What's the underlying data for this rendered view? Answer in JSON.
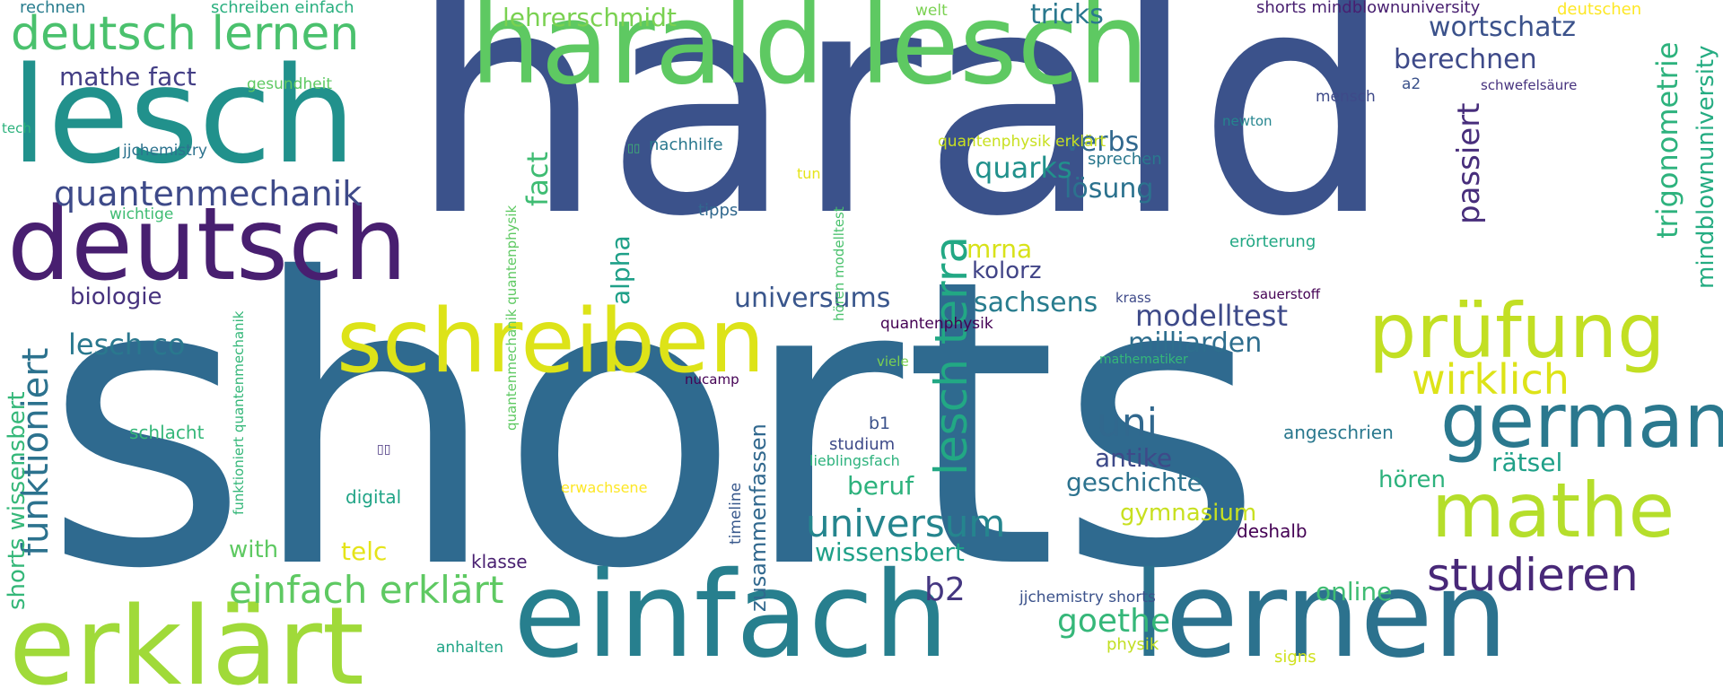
{
  "words": [
    {
      "text": "shorts",
      "color": "#2f6a8f"
    },
    {
      "text": "harald",
      "color": "#3b528b"
    },
    {
      "text": "einfach",
      "color": "#277f8e"
    },
    {
      "text": "lernen",
      "color": "#2c728e"
    },
    {
      "text": "harald lesch",
      "color": "#5ec962"
    },
    {
      "text": "lesch",
      "color": "#21918c"
    },
    {
      "text": "deutsch",
      "color": "#481f70"
    },
    {
      "text": "erklärt",
      "color": "#a0da39"
    },
    {
      "text": "schreiben",
      "color": "#dde318"
    },
    {
      "text": "prüfung",
      "color": "#c2df23"
    },
    {
      "text": "mathe",
      "color": "#b5de2b"
    },
    {
      "text": "german",
      "color": "#2a788e"
    },
    {
      "text": "deutsch lernen",
      "color": "#4ac16d"
    },
    {
      "text": "studieren",
      "color": "#482878"
    },
    {
      "text": "funktioniert",
      "color": "#2c728e"
    },
    {
      "text": "lesch terra",
      "color": "#22a884"
    },
    {
      "text": "einfach erklärt",
      "color": "#5ec962"
    },
    {
      "text": "quantenmechanik",
      "color": "#3e4a89"
    },
    {
      "text": "universum",
      "color": "#25858e"
    },
    {
      "text": "wirklich",
      "color": "#dde318"
    },
    {
      "text": "uni",
      "color": "#31688e"
    },
    {
      "text": "goethe",
      "color": "#35b779"
    },
    {
      "text": "mathe fact",
      "color": "#433e85"
    },
    {
      "text": "lehrerschmidt",
      "color": "#7ad151"
    },
    {
      "text": "tricks",
      "color": "#2a788e"
    },
    {
      "text": "wortschatz",
      "color": "#3b528b"
    },
    {
      "text": "berechnen",
      "color": "#3e4a89"
    },
    {
      "text": "passiert",
      "color": "#472d7b"
    },
    {
      "text": "trigonometrie",
      "color": "#2db27d"
    },
    {
      "text": "mindblownuniversity",
      "color": "#25ac82"
    },
    {
      "text": "verbs",
      "color": "#31688e"
    },
    {
      "text": "lösung",
      "color": "#2c728e"
    },
    {
      "text": "quarks",
      "color": "#21918c"
    },
    {
      "text": "fact",
      "color": "#3fbc73"
    },
    {
      "text": "alpha",
      "color": "#1fa088"
    },
    {
      "text": "mrna",
      "color": "#d8e219"
    },
    {
      "text": "kolorz",
      "color": "#414487"
    },
    {
      "text": "universums",
      "color": "#39568c"
    },
    {
      "text": "sachsens",
      "color": "#287c8e"
    },
    {
      "text": "modelltest",
      "color": "#3e4a89"
    },
    {
      "text": "milliarden",
      "color": "#2e6e8e"
    },
    {
      "text": "biologie",
      "color": "#46327e"
    },
    {
      "text": "lesch co",
      "color": "#2a788e"
    },
    {
      "text": "shorts wissensbert",
      "color": "#35b779"
    },
    {
      "text": "antike",
      "color": "#3e4a89"
    },
    {
      "text": "geschichte",
      "color": "#2c728e"
    },
    {
      "text": "rätsel",
      "color": "#1fa088"
    },
    {
      "text": "hören",
      "color": "#2db27d"
    },
    {
      "text": "beruf",
      "color": "#2db27d"
    },
    {
      "text": "gymnasium",
      "color": "#c8e020"
    },
    {
      "text": "wissensbert",
      "color": "#1fa088"
    },
    {
      "text": "zusammenfassen",
      "color": "#31688e"
    },
    {
      "text": "with",
      "color": "#5ec962"
    },
    {
      "text": "telc",
      "color": "#e5e419"
    },
    {
      "text": "b2",
      "color": "#453781"
    },
    {
      "text": "online",
      "color": "#3fbc73"
    },
    {
      "text": "jjchemistry shorts",
      "color": "#3b528b"
    },
    {
      "text": "schlacht",
      "color": "#35b779"
    },
    {
      "text": "digital",
      "color": "#20a486"
    },
    {
      "text": "klasse",
      "color": "#481f70"
    },
    {
      "text": "deshalb",
      "color": "#440154"
    },
    {
      "text": "timeline",
      "color": "#38588c"
    },
    {
      "text": "studium",
      "color": "#3e4a89"
    },
    {
      "text": "b1",
      "color": "#3b528b"
    },
    {
      "text": "lieblingsfach",
      "color": "#2db27d"
    },
    {
      "text": "angeschrien",
      "color": "#2a788e"
    },
    {
      "text": "erwachsene",
      "color": "#fde725"
    },
    {
      "text": "anhalten",
      "color": "#20a486"
    },
    {
      "text": "physik",
      "color": "#c2df23"
    },
    {
      "text": "signs",
      "color": "#d0e11c"
    },
    {
      "text": "rechnen",
      "color": "#287c8e"
    },
    {
      "text": "schreiben einfach",
      "color": "#29af7f"
    },
    {
      "text": "welt",
      "color": "#7ad151"
    },
    {
      "text": "shorts mindblownuniversity",
      "color": "#481f70"
    },
    {
      "text": "deutschen",
      "color": "#fde725"
    },
    {
      "text": "gesundheit",
      "color": "#5ec962"
    },
    {
      "text": "tech",
      "color": "#2db27d"
    },
    {
      "text": "jjchemistry",
      "color": "#2c728e"
    },
    {
      "text": "wichtige",
      "color": "#3fbc73"
    },
    {
      "text": "nachhilfe",
      "color": "#2a788e"
    },
    {
      "text": "tun",
      "color": "#e5e419"
    },
    {
      "text": "tipps",
      "color": "#31688e"
    },
    {
      "text": "hören modelltest",
      "color": "#4ac16d"
    },
    {
      "text": "quantenphysik erklärt",
      "color": "#c8e020"
    },
    {
      "text": "sprechen",
      "color": "#2a788e"
    },
    {
      "text": "mensch",
      "color": "#3e4a89"
    },
    {
      "text": "a2",
      "color": "#3b528b"
    },
    {
      "text": "schwefelsäure",
      "color": "#46327e"
    },
    {
      "text": "newton",
      "color": "#25858e"
    },
    {
      "text": "erörterung",
      "color": "#22a884"
    },
    {
      "text": "krass",
      "color": "#3e4a89"
    },
    {
      "text": "sauerstoff",
      "color": "#440154"
    },
    {
      "text": "quantenphysik",
      "color": "#440154"
    },
    {
      "text": "mathematiker",
      "color": "#35b779"
    },
    {
      "text": "viele",
      "color": "#7ad151"
    },
    {
      "text": "nucamp",
      "color": "#440154"
    },
    {
      "text": "quantenmechanik quantenphysik",
      "color": "#5ec962"
    },
    {
      "text": "funktioniert quantenmechanik",
      "color": "#35b779"
    },
    {
      "text": "▯▯",
      "color": "#3fbc73"
    },
    {
      "text": "▯▯",
      "color": "#46327e"
    }
  ]
}
